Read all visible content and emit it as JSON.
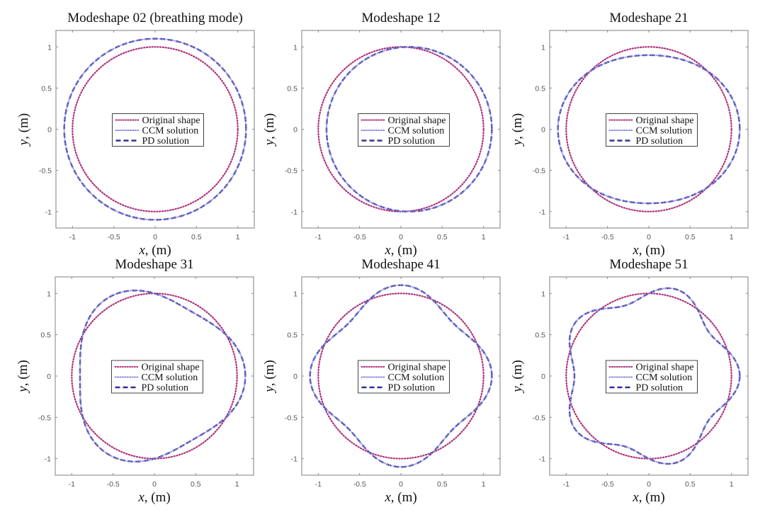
{
  "figure": {
    "legend_entries": [
      "Original shape",
      "CCM solution",
      "PD solution"
    ]
  },
  "colors": {
    "original": "#B0307A",
    "ccm": "#8C8CE6",
    "pd": "#2E3192"
  },
  "chart_data": [
    {
      "type": "line",
      "title": "Modeshape 02 (breathing mode)",
      "xlabel": "x, (m)",
      "ylabel": "y, (m)",
      "xlim": [
        -1.2,
        1.2
      ],
      "ylim": [
        -1.2,
        1.2
      ],
      "xticks": [
        -1,
        -0.5,
        0,
        0.5,
        1
      ],
      "yticks": [
        -1,
        -0.5,
        0,
        0.5,
        1
      ],
      "xtick_labels": [
        "-1",
        "-0.5",
        "0",
        "0.5",
        "1"
      ],
      "ytick_labels": [
        "-1",
        "-0.5",
        "0",
        "0.5",
        "1"
      ],
      "grid": false,
      "legend": "center",
      "series": [
        {
          "name": "Original shape",
          "shape": "circle",
          "radius": 1.0
        },
        {
          "name": "CCM solution",
          "shape": "polar",
          "radius": 1.0,
          "amplitude": 0.1,
          "harmonic": 0,
          "shift_x": 0
        },
        {
          "name": "PD solution",
          "shape": "polar",
          "radius": 1.0,
          "amplitude": 0.1,
          "harmonic": 0,
          "shift_x": 0
        }
      ]
    },
    {
      "type": "line",
      "title": "Modeshape 12",
      "xlabel": "x, (m)",
      "ylabel": "y, (m)",
      "xlim": [
        -1.2,
        1.2
      ],
      "ylim": [
        -1.2,
        1.2
      ],
      "xticks": [
        -1,
        -0.5,
        0,
        0.5,
        1
      ],
      "yticks": [
        -1,
        -0.5,
        0,
        0.5,
        1
      ],
      "xtick_labels": [
        "-1",
        "-0.5",
        "0",
        "0.5",
        "1"
      ],
      "ytick_labels": [
        "-1",
        "-0.5",
        "0",
        "0.5",
        "1"
      ],
      "grid": false,
      "legend": "center",
      "series": [
        {
          "name": "Original shape",
          "shape": "circle",
          "radius": 1.0
        },
        {
          "name": "CCM solution",
          "shape": "polar",
          "radius": 1.0,
          "amplitude": 0.0,
          "harmonic": 1,
          "shift_x": 0.1
        },
        {
          "name": "PD solution",
          "shape": "polar",
          "radius": 1.0,
          "amplitude": 0.0,
          "harmonic": 1,
          "shift_x": 0.1
        }
      ]
    },
    {
      "type": "line",
      "title": "Modeshape 21",
      "xlabel": "x, (m)",
      "ylabel": "y, (m)",
      "xlim": [
        -1.2,
        1.2
      ],
      "ylim": [
        -1.2,
        1.2
      ],
      "xticks": [
        -1,
        -0.5,
        0,
        0.5,
        1
      ],
      "yticks": [
        -1,
        -0.5,
        0,
        0.5,
        1
      ],
      "xtick_labels": [
        "-1",
        "-0.5",
        "0",
        "0.5",
        "1"
      ],
      "ytick_labels": [
        "-1",
        "-0.5",
        "0",
        "0.5",
        "1"
      ],
      "grid": false,
      "legend": "center",
      "series": [
        {
          "name": "Original shape",
          "shape": "circle",
          "radius": 1.0
        },
        {
          "name": "CCM solution",
          "shape": "polar",
          "radius": 1.0,
          "amplitude": 0.1,
          "harmonic": 2,
          "shift_x": 0
        },
        {
          "name": "PD solution",
          "shape": "polar",
          "radius": 1.0,
          "amplitude": 0.1,
          "harmonic": 2,
          "shift_x": 0
        }
      ]
    },
    {
      "type": "line",
      "title": "Modeshape 31",
      "xlabel": "x, (m)",
      "ylabel": "y, (m)",
      "xlim": [
        -1.2,
        1.2
      ],
      "ylim": [
        -1.2,
        1.2
      ],
      "xticks": [
        -1,
        -0.5,
        0,
        0.5,
        1
      ],
      "yticks": [
        -1,
        -0.5,
        0,
        0.5,
        1
      ],
      "xtick_labels": [
        "-1",
        "-0.5",
        "0",
        "0.5",
        "1"
      ],
      "ytick_labels": [
        "-1",
        "-0.5",
        "0",
        "0.5",
        "1"
      ],
      "grid": false,
      "legend": "center",
      "series": [
        {
          "name": "Original shape",
          "shape": "circle",
          "radius": 1.0
        },
        {
          "name": "CCM solution",
          "shape": "polar",
          "radius": 1.0,
          "amplitude": 0.1,
          "harmonic": 3,
          "shift_x": 0
        },
        {
          "name": "PD solution",
          "shape": "polar",
          "radius": 1.0,
          "amplitude": 0.1,
          "harmonic": 3,
          "shift_x": 0
        }
      ]
    },
    {
      "type": "line",
      "title": "Modeshape 41",
      "xlabel": "x, (m)",
      "ylabel": "y, (m)",
      "xlim": [
        -1.2,
        1.2
      ],
      "ylim": [
        -1.2,
        1.2
      ],
      "xticks": [
        -1,
        -0.5,
        0,
        0.5,
        1
      ],
      "yticks": [
        -1,
        -0.5,
        0,
        0.5,
        1
      ],
      "xtick_labels": [
        "-1",
        "-0.5",
        "0",
        "0.5",
        "1"
      ],
      "ytick_labels": [
        "-1",
        "-0.5",
        "0",
        "0.5",
        "1"
      ],
      "grid": false,
      "legend": "center",
      "series": [
        {
          "name": "Original shape",
          "shape": "circle",
          "radius": 1.0
        },
        {
          "name": "CCM solution",
          "shape": "polar",
          "radius": 1.0,
          "amplitude": 0.1,
          "harmonic": 4,
          "shift_x": 0
        },
        {
          "name": "PD solution",
          "shape": "polar",
          "radius": 1.0,
          "amplitude": 0.1,
          "harmonic": 4,
          "shift_x": 0
        }
      ]
    },
    {
      "type": "line",
      "title": "Modeshape 51",
      "xlabel": "x, (m)",
      "ylabel": "y, (m)",
      "xlim": [
        -1.2,
        1.2
      ],
      "ylim": [
        -1.2,
        1.2
      ],
      "xticks": [
        -1,
        -0.5,
        0,
        0.5,
        1
      ],
      "yticks": [
        -1,
        -0.5,
        0,
        0.5,
        1
      ],
      "xtick_labels": [
        "-1",
        "-0.5",
        "0",
        "0.5",
        "1"
      ],
      "ytick_labels": [
        "-1",
        "-0.5",
        "0",
        "0.5",
        "1"
      ],
      "grid": false,
      "legend": "center",
      "series": [
        {
          "name": "Original shape",
          "shape": "circle",
          "radius": 1.0
        },
        {
          "name": "CCM solution",
          "shape": "polar",
          "radius": 1.0,
          "amplitude": 0.1,
          "harmonic": 5,
          "shift_x": 0
        },
        {
          "name": "PD solution",
          "shape": "polar",
          "radius": 1.0,
          "amplitude": 0.1,
          "harmonic": 5,
          "shift_x": 0
        }
      ]
    }
  ]
}
